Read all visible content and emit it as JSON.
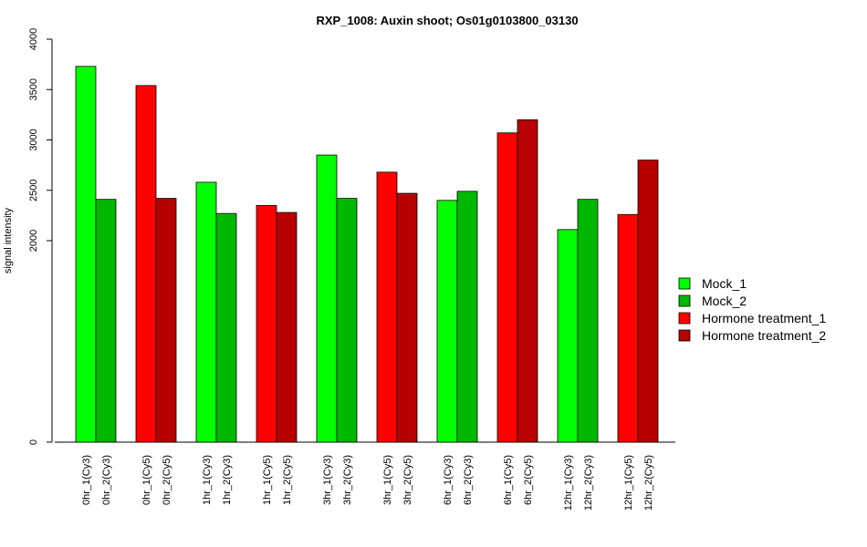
{
  "chart_data": {
    "type": "bar",
    "title": "RXP_1008: Auxin shoot; Os01g0103800_03130",
    "xlabel": "",
    "ylabel": "signal intensity",
    "ylim": [
      0,
      4000
    ],
    "y_ticks": [
      0,
      2000,
      2500,
      3000,
      3500,
      4000
    ],
    "grid": false,
    "legend_position": "right",
    "categories": [
      "0hr_1(Cy3)",
      "0hr_2(Cy3)",
      "0hr_1(Cy5)",
      "0hr_2(Cy5)",
      "1hr_1(Cy3)",
      "1hr_2(Cy3)",
      "1hr_1(Cy5)",
      "1hr_2(Cy5)",
      "3hr_1(Cy3)",
      "3hr_2(Cy3)",
      "3hr_1(Cy5)",
      "3hr_2(Cy5)",
      "6hr_1(Cy3)",
      "6hr_2(Cy3)",
      "6hr_1(Cy5)",
      "6hr_2(Cy5)",
      "12hr_1(Cy3)",
      "12hr_2(Cy3)",
      "12hr_1(Cy5)",
      "12hr_2(Cy5)"
    ],
    "values": [
      3730,
      2410,
      3540,
      2420,
      2580,
      2270,
      2350,
      2280,
      2850,
      2420,
      2680,
      2470,
      2400,
      2490,
      3070,
      3200,
      2110,
      2410,
      2260,
      2800
    ],
    "bar_series": [
      0,
      1,
      2,
      3,
      0,
      1,
      2,
      3,
      0,
      1,
      2,
      3,
      0,
      1,
      2,
      3,
      0,
      1,
      2,
      3
    ],
    "series": [
      {
        "name": "Mock_1",
        "color": "#00ff00"
      },
      {
        "name": "Mock_2",
        "color": "#00b800"
      },
      {
        "name": "Hormone treatment_1",
        "color": "#ff0000"
      },
      {
        "name": "Hormone treatment_2",
        "color": "#b80000"
      }
    ]
  }
}
